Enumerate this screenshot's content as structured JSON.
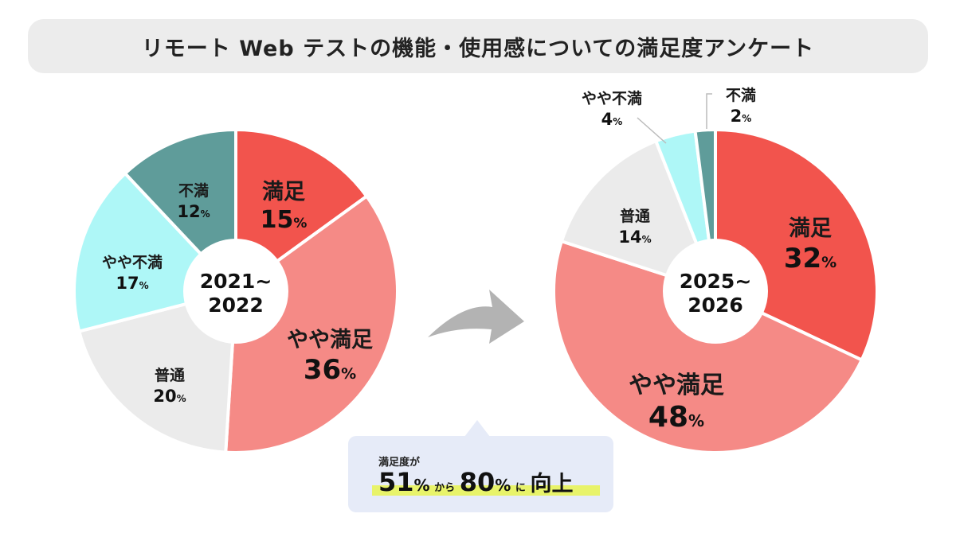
{
  "title": "リモート Web テストの機能・使用感についての満足度アンケート",
  "chart_data": [
    {
      "type": "pie",
      "center_label": [
        "2021~",
        "2022"
      ],
      "slices": [
        {
          "label": "満足",
          "value": 15,
          "color": "#f2544d"
        },
        {
          "label": "やや満足",
          "value": 36,
          "color": "#f58a86"
        },
        {
          "label": "普通",
          "value": 20,
          "color": "#ebebeb"
        },
        {
          "label": "やや不満",
          "value": 17,
          "color": "#aef7f7"
        },
        {
          "label": "不満",
          "value": 12,
          "color": "#5f9c9a"
        }
      ]
    },
    {
      "type": "pie",
      "center_label": [
        "2025~",
        "2026"
      ],
      "slices": [
        {
          "label": "満足",
          "value": 32,
          "color": "#f2544d"
        },
        {
          "label": "やや満足",
          "value": 48,
          "color": "#f58a86"
        },
        {
          "label": "普通",
          "value": 14,
          "color": "#ebebeb"
        },
        {
          "label": "やや不満",
          "value": 4,
          "color": "#aef7f7"
        },
        {
          "label": "不満",
          "value": 2,
          "color": "#5f9c9a"
        }
      ]
    }
  ],
  "percent_unit": "%",
  "arrow_color": "#b3b3b3",
  "callout": {
    "subtitle": "満足度が",
    "from_value": "51",
    "percent": "%",
    "kara": "から",
    "to_value": "80",
    "ni": "に",
    "koujou": "向上"
  }
}
